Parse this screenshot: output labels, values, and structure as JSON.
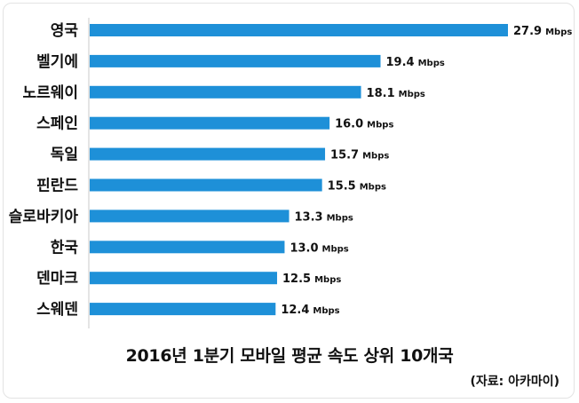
{
  "chart_data": {
    "type": "bar",
    "orientation": "horizontal",
    "title": "2016년 1분기 모바일 평균 속도 상위 10개국",
    "source": "(자료: 아카마이)",
    "unit": "Mbps",
    "categories": [
      "영국",
      "벨기에",
      "노르웨이",
      "스페인",
      "독일",
      "핀란드",
      "슬로바키아",
      "한국",
      "덴마크",
      "스웨덴"
    ],
    "values": [
      27.9,
      19.4,
      18.1,
      16.0,
      15.7,
      15.5,
      13.3,
      13.0,
      12.5,
      12.4
    ],
    "value_labels": [
      "27.9",
      "19.4",
      "18.1",
      "16.0",
      "15.7",
      "15.5",
      "13.3",
      "13.0",
      "12.5",
      "12.4"
    ],
    "xlim": [
      0,
      27.9
    ],
    "bar_color": "#1e90d8",
    "grid": false,
    "legend": "none"
  }
}
